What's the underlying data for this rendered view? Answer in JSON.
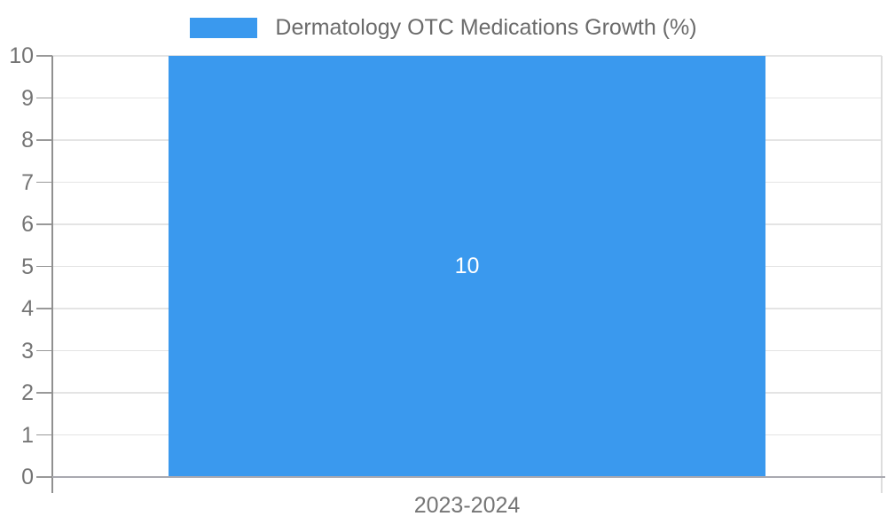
{
  "chart_data": {
    "type": "bar",
    "title": "",
    "legend": {
      "position": "top",
      "label": "Dermatology OTC Medications Growth (%)"
    },
    "categories": [
      "2023-2024"
    ],
    "series": [
      {
        "name": "Dermatology OTC Medications Growth (%)",
        "values": [
          10
        ]
      }
    ],
    "bar_labels": [
      "10"
    ],
    "xlabel": "",
    "ylabel": "",
    "ylim": [
      0,
      10
    ],
    "yticks": [
      0,
      1,
      2,
      3,
      4,
      5,
      6,
      7,
      8,
      9,
      10
    ],
    "grid": true,
    "colors": {
      "bar": "#3a99ee",
      "grid": "#e4e4e4",
      "axis": "#a9a9b0",
      "y_axis": "#909090",
      "tick": "#999999",
      "text": "#757575",
      "legend_text": "#6b6b6b",
      "bar_label": "#ffffff",
      "boundary": "#dddddd",
      "background": "#ffffff"
    }
  }
}
